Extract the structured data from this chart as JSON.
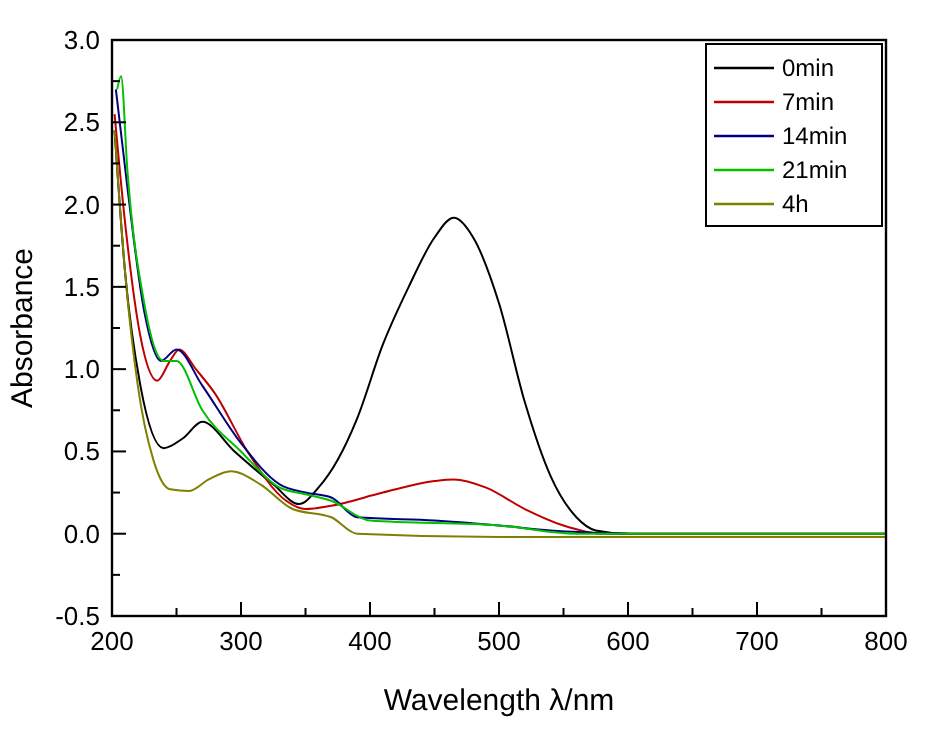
{
  "chart_data": {
    "type": "line",
    "xlabel": "Wavelength λ/nm",
    "ylabel": "Absorbance",
    "xlim": [
      200,
      800
    ],
    "ylim": [
      -0.5,
      3.0
    ],
    "xticks": [
      200,
      {
        "value": 250,
        "label": null
      },
      300,
      {
        "value": 350,
        "label": null
      },
      400,
      {
        "value": 450,
        "label": null
      },
      500,
      {
        "value": 550,
        "label": null
      },
      600,
      {
        "value": 650,
        "label": null
      },
      700,
      {
        "value": 750,
        "label": null
      },
      800
    ],
    "yticks": [
      -0.5,
      {
        "value": -0.25,
        "label": null
      },
      {
        "value": 0,
        "label": "0.0"
      },
      {
        "value": 0.25,
        "label": null
      },
      0.5,
      {
        "value": 0.75,
        "label": null
      },
      {
        "value": 1,
        "label": "1.0"
      },
      {
        "value": 1.25,
        "label": null
      },
      1.5,
      {
        "value": 1.75,
        "label": null
      },
      {
        "value": 2,
        "label": "2.0"
      },
      {
        "value": 2.25,
        "label": null
      },
      2.5,
      {
        "value": 2.75,
        "label": null
      },
      {
        "value": 3,
        "label": "3.0"
      }
    ],
    "grid": false,
    "legend": "top right",
    "line_style": "solid",
    "marker": "none",
    "series": [
      {
        "name": "0min",
        "color": "#000000",
        "x": [
          202,
          210,
          222,
          240,
          255,
          270,
          295,
          325,
          345,
          360,
          375,
          390,
          410,
          430,
          450,
          465,
          480,
          500,
          520,
          540,
          560,
          575,
          600,
          700,
          800
        ],
        "values": [
          2.45,
          1.6,
          0.9,
          0.52,
          0.58,
          0.68,
          0.5,
          0.3,
          0.18,
          0.28,
          0.45,
          0.7,
          1.15,
          1.5,
          1.8,
          1.92,
          1.8,
          1.4,
          0.8,
          0.35,
          0.1,
          0.02,
          0,
          0,
          0
        ]
      },
      {
        "name": "7min",
        "color": "#c00000",
        "x": [
          202,
          210,
          222,
          235,
          245,
          252,
          265,
          280,
          305,
          335,
          350,
          370,
          410,
          450,
          465,
          490,
          520,
          550,
          580,
          700,
          800
        ],
        "values": [
          2.55,
          1.9,
          1.2,
          0.93,
          1.05,
          1.12,
          1.0,
          0.85,
          0.5,
          0.2,
          0.15,
          0.17,
          0.25,
          0.32,
          0.33,
          0.28,
          0.15,
          0.05,
          0,
          0,
          0
        ]
      },
      {
        "name": "14min",
        "color": "#000080",
        "x": [
          203,
          212,
          225,
          238,
          250,
          270,
          300,
          330,
          350,
          370,
          390,
          450,
          500,
          540,
          600
        ],
        "values": [
          2.7,
          2.1,
          1.35,
          1.05,
          1.12,
          0.9,
          0.55,
          0.3,
          0.25,
          0.22,
          0.1,
          0.08,
          0.05,
          0.02,
          0
        ]
      },
      {
        "name": "21min",
        "color": "#00c000",
        "x": [
          204,
          207,
          212,
          225,
          240,
          250,
          270,
          300,
          330,
          350,
          370,
          400,
          500,
          560,
          700,
          800
        ],
        "values": [
          2.7,
          2.78,
          2.2,
          1.4,
          1.05,
          1.05,
          0.75,
          0.5,
          0.28,
          0.24,
          0.2,
          0.08,
          0.05,
          0,
          0,
          0
        ]
      },
      {
        "name": "4h",
        "color": "#808000",
        "x": [
          202,
          210,
          220,
          232,
          245,
          260,
          275,
          292,
          315,
          340,
          370,
          390,
          500,
          800
        ],
        "values": [
          2.45,
          1.6,
          0.9,
          0.45,
          0.27,
          0.26,
          0.33,
          0.38,
          0.3,
          0.15,
          0.1,
          0,
          -0.02,
          -0.02
        ]
      }
    ]
  }
}
